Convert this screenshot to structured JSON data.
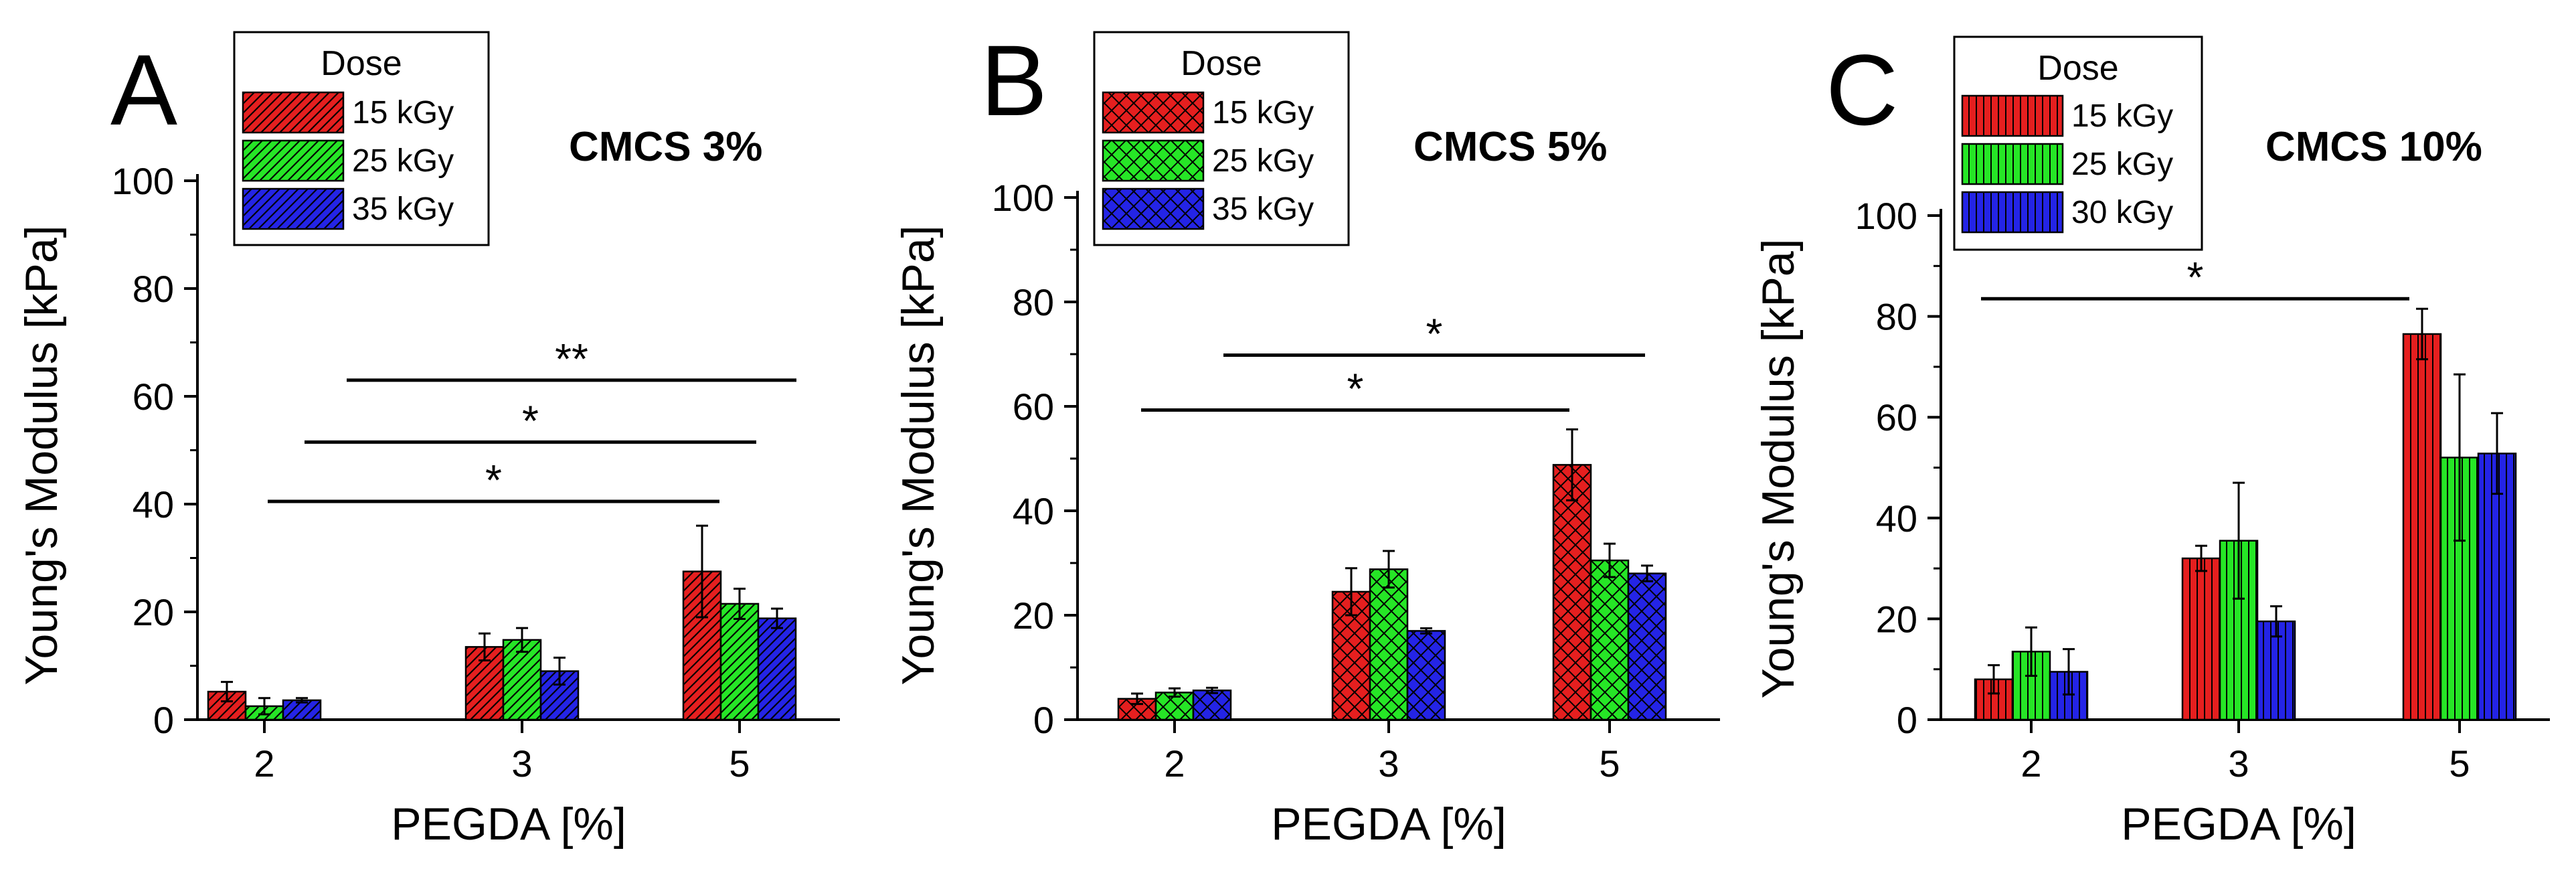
{
  "figure": {
    "colors": {
      "red": "#e51f1f",
      "green": "#26e626",
      "blue": "#2424e6",
      "axis": "#000000"
    }
  },
  "chart_data": [
    {
      "type": "bar",
      "panel": "A",
      "title": "CMCS 3%",
      "xlabel": "PEGDA [%]",
      "ylabel": "Young's Modulus [kPa]",
      "ylim": [
        0,
        100
      ],
      "yticks": [
        "0",
        "20",
        "40",
        "60",
        "80",
        "100"
      ],
      "categories": [
        "2",
        "3",
        "5"
      ],
      "legend": {
        "title": "Dose",
        "placement": "top-left",
        "pattern": "diagonal hatch"
      },
      "series": [
        {
          "name": "15 kGy",
          "color": "#e51f1f",
          "values": [
            5.2,
            13.5,
            27.5
          ],
          "errors": [
            1.8,
            2.5,
            8.5
          ]
        },
        {
          "name": "25 kGy",
          "color": "#26e626",
          "values": [
            2.5,
            14.8,
            21.5
          ],
          "errors": [
            1.5,
            2.2,
            2.8
          ]
        },
        {
          "name": "35 kGy",
          "color": "#2424e6",
          "values": [
            3.6,
            9.0,
            18.8
          ],
          "errors": [
            0.4,
            2.5,
            1.8
          ]
        }
      ],
      "significance": [
        {
          "label": "**",
          "level": 63
        },
        {
          "label": "*",
          "level": 51.5
        },
        {
          "label": "*",
          "level": 40.5
        }
      ]
    },
    {
      "type": "bar",
      "panel": "B",
      "title": "CMCS 5%",
      "xlabel": "PEGDA [%]",
      "ylabel": "Young's Modulus [kPa]",
      "ylim": [
        0,
        100
      ],
      "yticks": [
        "0",
        "20",
        "40",
        "60",
        "80",
        "100"
      ],
      "categories": [
        "2",
        "3",
        "5"
      ],
      "legend": {
        "title": "Dose",
        "placement": "top-left",
        "pattern": "cross hatch"
      },
      "series": [
        {
          "name": "15 kGy",
          "color": "#e51f1f",
          "values": [
            4.0,
            24.5,
            48.8
          ],
          "errors": [
            1.0,
            4.5,
            6.8
          ]
        },
        {
          "name": "25 kGy",
          "color": "#26e626",
          "values": [
            5.2,
            28.8,
            30.5
          ],
          "errors": [
            0.8,
            3.5,
            3.2
          ]
        },
        {
          "name": "35 kGy",
          "color": "#2424e6",
          "values": [
            5.6,
            17.0,
            28.0
          ],
          "errors": [
            0.5,
            0.5,
            1.5
          ]
        }
      ],
      "significance": [
        {
          "label": "*",
          "level": 69.8
        },
        {
          "label": "*",
          "level": 59.3
        }
      ]
    },
    {
      "type": "bar",
      "panel": "C",
      "title": "CMCS 10%",
      "xlabel": "PEGDA [%]",
      "ylabel": "Young's Modulus [kPa]",
      "ylim": [
        0,
        100
      ],
      "yticks": [
        "0",
        "20",
        "40",
        "60",
        "80",
        "100"
      ],
      "categories": [
        "2",
        "3",
        "5"
      ],
      "legend": {
        "title": "Dose",
        "placement": "top-left",
        "pattern": "vertical stripes"
      },
      "series": [
        {
          "name": "15 kGy",
          "color": "#e51f1f",
          "values": [
            8.0,
            32.0,
            76.5
          ],
          "errors": [
            2.8,
            2.5,
            5.0
          ]
        },
        {
          "name": "25 kGy",
          "color": "#26e626",
          "values": [
            13.5,
            35.5,
            52.0
          ],
          "errors": [
            4.8,
            11.5,
            16.5
          ]
        },
        {
          "name": "30 kGy",
          "color": "#2424e6",
          "values": [
            9.5,
            19.5,
            52.8
          ],
          "errors": [
            4.5,
            3.0,
            8.0
          ]
        }
      ],
      "significance": [
        {
          "label": "*",
          "level": 83.5
        }
      ]
    }
  ]
}
